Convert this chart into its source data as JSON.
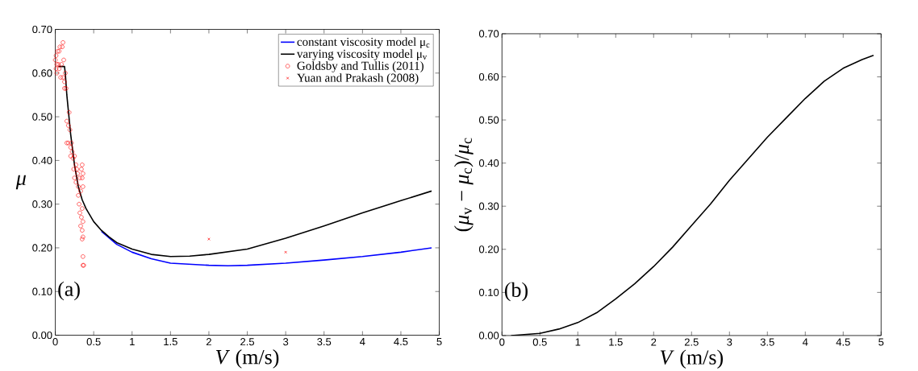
{
  "chart_data": [
    {
      "type": "line",
      "xlabel": "*V* (m/s)",
      "ylabel": "*μ*",
      "xlim": [
        0,
        5
      ],
      "ylim": [
        0,
        0.7
      ],
      "xticks": [
        0,
        0.5,
        1,
        1.5,
        2,
        2.5,
        3,
        3.5,
        4,
        4.5,
        5
      ],
      "yticks": [
        {
          "value": 0,
          "label": "0.00"
        },
        {
          "value": 0.1,
          "label": "0.10"
        },
        {
          "value": 0.2,
          "label": "0.20"
        },
        {
          "value": 0.3,
          "label": "0.30"
        },
        {
          "value": 0.4,
          "label": "0.40"
        },
        {
          "value": 0.5,
          "label": "0.50"
        },
        {
          "value": 0.6,
          "label": "0.60"
        },
        {
          "value": 0.7,
          "label": "0.70"
        }
      ],
      "legend": "top right",
      "grid": false,
      "annotations": [
        "(a)"
      ],
      "series": [
        {
          "name": "constant viscosity model μ$_{c}$",
          "type": "line",
          "color": "#0000ff",
          "marker": "none",
          "line_style": "solid",
          "x": [
            0.6,
            0.8,
            1,
            1.25,
            1.5,
            2,
            2.25,
            2.5,
            3,
            3.5,
            4,
            4.5,
            4.9
          ],
          "values": [
            0.238,
            0.208,
            0.19,
            0.175,
            0.165,
            0.16,
            0.159,
            0.16,
            0.165,
            0.172,
            0.18,
            0.19,
            0.2
          ]
        },
        {
          "name": "varying viscosity model μ$_{v}$",
          "type": "line",
          "color": "#000000",
          "marker": "none",
          "line_style": "solid",
          "x": [
            0.04,
            0.12,
            0.13,
            0.15,
            0.2,
            0.25,
            0.3,
            0.35,
            0.4,
            0.5,
            0.6,
            0.7,
            0.8,
            1,
            1.25,
            1.5,
            1.75,
            2,
            2.5,
            3,
            3.5,
            4,
            4.5,
            4.9
          ],
          "values": [
            0.615,
            0.615,
            0.6,
            0.55,
            0.46,
            0.39,
            0.34,
            0.31,
            0.29,
            0.26,
            0.24,
            0.225,
            0.212,
            0.197,
            0.185,
            0.18,
            0.181,
            0.185,
            0.197,
            0.222,
            0.25,
            0.28,
            0.308,
            0.33
          ]
        },
        {
          "name": "Goldsby and Tullis (2011)",
          "type": "scatter",
          "color": "#ff0000",
          "marker": "circle",
          "x": [
            0.0,
            0.01,
            0.02,
            0.01,
            0.03,
            0.02,
            0.04,
            0.05,
            0.05,
            0.06,
            0.07,
            0.08,
            0.09,
            0.1,
            0.1,
            0.11,
            0.12,
            0.13,
            0.12,
            0.14,
            0.15,
            0.17,
            0.18,
            0.19,
            0.15,
            0.17,
            0.2,
            0.21,
            0.22,
            0.2,
            0.23,
            0.25,
            0.24,
            0.25,
            0.27,
            0.28,
            0.27,
            0.29,
            0.3,
            0.3,
            0.31,
            0.32,
            0.33,
            0.32,
            0.33,
            0.34,
            0.35,
            0.35,
            0.36,
            0.36,
            0.35,
            0.34,
            0.36,
            0.35,
            0.36,
            0.35,
            0.36,
            0.36,
            0.37
          ],
          "values": [
            0.63,
            0.64,
            0.62,
            0.61,
            0.65,
            0.6,
            0.62,
            0.65,
            0.61,
            0.66,
            0.59,
            0.62,
            0.66,
            0.67,
            0.59,
            0.63,
            0.58,
            0.6,
            0.565,
            0.565,
            0.49,
            0.48,
            0.51,
            0.47,
            0.44,
            0.44,
            0.43,
            0.44,
            0.42,
            0.41,
            0.405,
            0.41,
            0.38,
            0.36,
            0.39,
            0.38,
            0.35,
            0.37,
            0.34,
            0.32,
            0.3,
            0.36,
            0.33,
            0.28,
            0.25,
            0.38,
            0.39,
            0.36,
            0.37,
            0.34,
            0.29,
            0.27,
            0.26,
            0.24,
            0.225,
            0.22,
            0.18,
            0.16,
            0.16
          ]
        },
        {
          "name": "Yuan and Prakash (2008)",
          "type": "scatter",
          "color": "#ff0000",
          "marker": "cross",
          "x": [
            2,
            3
          ],
          "values": [
            0.22,
            0.19
          ]
        }
      ]
    },
    {
      "type": "line",
      "xlabel": "*V* (m/s)",
      "ylabel": "(*μ*$_{v}$ − *μ*$_{c}$)/*μ*$_{c}$",
      "xlim": [
        0,
        5
      ],
      "ylim": [
        0,
        0.7
      ],
      "xticks": [
        0,
        0.5,
        1,
        1.5,
        2,
        2.5,
        3,
        3.5,
        4,
        4.5,
        5
      ],
      "yticks": [
        {
          "value": 0,
          "label": "0.00"
        },
        {
          "value": 0.1,
          "label": "0.10"
        },
        {
          "value": 0.2,
          "label": "0.20"
        },
        {
          "value": 0.3,
          "label": "0.30"
        },
        {
          "value": 0.4,
          "label": "0.40"
        },
        {
          "value": 0.5,
          "label": "0.50"
        },
        {
          "value": 0.6,
          "label": "0.60"
        },
        {
          "value": 0.7,
          "label": "0.70"
        }
      ],
      "grid": false,
      "annotations": [
        "(b)"
      ],
      "series": [
        {
          "color": "#000000",
          "marker": "none",
          "line_style": "solid",
          "x": [
            0.12,
            0.5,
            0.75,
            1,
            1.25,
            1.5,
            1.75,
            2,
            2.25,
            2.5,
            2.75,
            3,
            3.25,
            3.5,
            3.75,
            4,
            4.25,
            4.5,
            4.75,
            4.9
          ],
          "values": [
            0,
            0.005,
            0.015,
            0.03,
            0.053,
            0.085,
            0.12,
            0.16,
            0.205,
            0.255,
            0.305,
            0.36,
            0.41,
            0.46,
            0.505,
            0.55,
            0.59,
            0.62,
            0.64,
            0.65
          ]
        }
      ]
    }
  ]
}
